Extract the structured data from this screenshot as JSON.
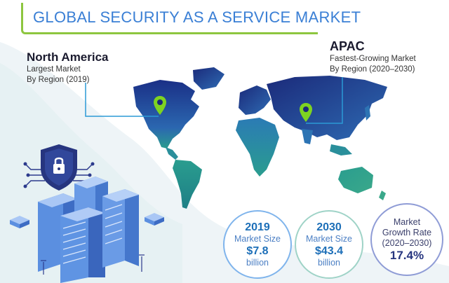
{
  "title": "GLOBAL SECURITY AS A SERVICE MARKET",
  "callouts": {
    "north_america": {
      "title": "North America",
      "line1": "Largest Market",
      "line2": "By Region (2019)"
    },
    "apac": {
      "title": "APAC",
      "line1": "Fastest-Growing Market",
      "line2": "By Region (2020–2030)"
    }
  },
  "bubbles": [
    {
      "year": "2019",
      "label": "Market Size",
      "value": "$7.8",
      "unit": "billion"
    },
    {
      "year": "2030",
      "label": "Market Size",
      "value": "$43.4",
      "unit": "billion"
    },
    {
      "label1": "Market",
      "label2": "Growth Rate",
      "label3": "(2020–2030)",
      "value": "17.4%"
    }
  ],
  "colors": {
    "title": "#3a7fd5",
    "accent_green": "#8dc63f",
    "map_blue": "#1f3f8f",
    "map_teal": "#2a9d8f",
    "pin": "#7ed321"
  },
  "icons": [
    "location-pin-icon",
    "shield-lock-icon",
    "server-rack-icon"
  ]
}
